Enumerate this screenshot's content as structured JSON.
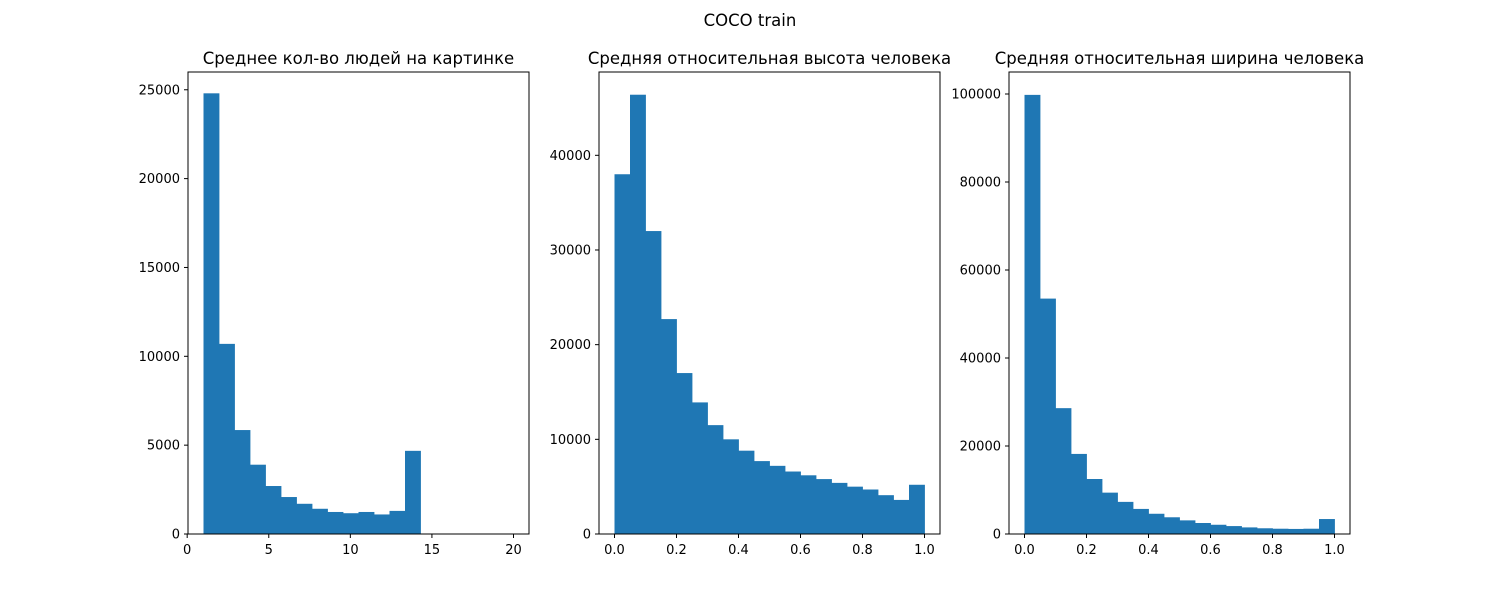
{
  "figure": {
    "suptitle": "COCO train"
  },
  "chart_data": [
    {
      "type": "bar",
      "title": "Среднее кол-во людей на картинке",
      "xlabel": "",
      "ylabel": "",
      "xlim": [
        0.05,
        20.95
      ],
      "ylim": [
        0,
        26000
      ],
      "xticks": [
        0,
        5,
        10,
        15,
        20
      ],
      "xtick_labels": [
        "0",
        "5",
        "10",
        "15",
        "20"
      ],
      "yticks": [
        0,
        5000,
        10000,
        15000,
        20000,
        25000
      ],
      "ytick_labels": [
        "0",
        "5000",
        "10000",
        "15000",
        "20000",
        "25000"
      ],
      "bin_range": [
        1,
        20
      ],
      "values": [
        24800,
        10700,
        5850,
        3900,
        2700,
        2080,
        1700,
        1420,
        1240,
        1170,
        1240,
        1100,
        1300,
        4680,
        0,
        0,
        0,
        0,
        0,
        0
      ],
      "color": "#1f77b4",
      "grid": false
    },
    {
      "type": "bar",
      "title": "Средняя относительная высота человека",
      "xlabel": "",
      "ylabel": "",
      "xlim": [
        -0.05,
        1.05
      ],
      "ylim": [
        0,
        48800
      ],
      "xticks": [
        0.0,
        0.2,
        0.4,
        0.6,
        0.8,
        1.0
      ],
      "xtick_labels": [
        "0.0",
        "0.2",
        "0.4",
        "0.6",
        "0.8",
        "1.0"
      ],
      "yticks": [
        0,
        10000,
        20000,
        30000,
        40000
      ],
      "ytick_labels": [
        "0",
        "10000",
        "20000",
        "30000",
        "40000"
      ],
      "bin_range": [
        0,
        1
      ],
      "values": [
        38000,
        46400,
        32000,
        22700,
        17000,
        13900,
        11500,
        10000,
        8800,
        7700,
        7200,
        6600,
        6200,
        5800,
        5400,
        5000,
        4700,
        4100,
        3600,
        5200
      ],
      "color": "#1f77b4",
      "grid": false
    },
    {
      "type": "bar",
      "title": "Средняя относительная ширина человека",
      "xlabel": "",
      "ylabel": "",
      "xlim": [
        -0.05,
        1.05
      ],
      "ylim": [
        0,
        105000
      ],
      "xticks": [
        0.0,
        0.2,
        0.4,
        0.6,
        0.8,
        1.0
      ],
      "xtick_labels": [
        "0.0",
        "0.2",
        "0.4",
        "0.6",
        "0.8",
        "1.0"
      ],
      "yticks": [
        0,
        20000,
        40000,
        60000,
        80000,
        100000
      ],
      "ytick_labels": [
        "0",
        "20000",
        "40000",
        "60000",
        "80000",
        "100000"
      ],
      "bin_range": [
        0,
        1
      ],
      "values": [
        99800,
        53500,
        28600,
        18200,
        12500,
        9400,
        7300,
        5700,
        4600,
        3800,
        3100,
        2500,
        2100,
        1800,
        1500,
        1300,
        1200,
        1150,
        1200,
        3400
      ],
      "color": "#1f77b4",
      "grid": false
    }
  ]
}
